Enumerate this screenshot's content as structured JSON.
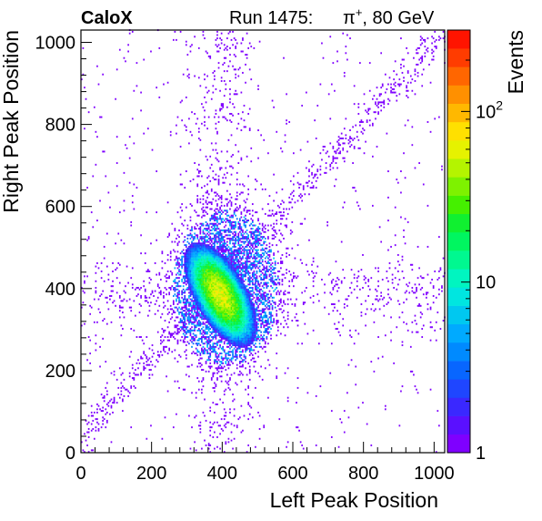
{
  "header": {
    "experiment": "CaloX",
    "run_label": "Run 1475:",
    "particle_base": "π",
    "particle_charge": "+",
    "beam_energy": ", 80 GeV"
  },
  "colors": {
    "palette": [
      "#7f00ff",
      "#5a10ff",
      "#3a28ff",
      "#1f46ff",
      "#0866ff",
      "#008aff",
      "#00aaff",
      "#00c8f0",
      "#00e6e0",
      "#00f5c0",
      "#00f890",
      "#00f660",
      "#10f030",
      "#45f000",
      "#7ef200",
      "#b4f400",
      "#e6f200",
      "#ffe000",
      "#ffb800",
      "#ff9000",
      "#ff6600",
      "#ff3c00",
      "#ff1400"
    ],
    "axis": "#000000",
    "background": "#ffffff"
  },
  "chart_data": {
    "type": "heatmap",
    "title": "",
    "xlabel": "Left Peak Position",
    "ylabel": "Right Peak Position",
    "zlabel": "Events",
    "xlim": [
      0,
      1030
    ],
    "ylim": [
      0,
      1030
    ],
    "zlim": [
      1,
      300
    ],
    "z_scale": "log",
    "bin_width": 4,
    "x_ticks": [
      0,
      200,
      400,
      600,
      800,
      1000
    ],
    "y_ticks": [
      0,
      200,
      400,
      600,
      800,
      1000
    ],
    "z_tick_labels": [
      {
        "value": 1,
        "base": "1",
        "exp": ""
      },
      {
        "value": 10,
        "base": "10",
        "exp": ""
      },
      {
        "value": 100,
        "base": "10",
        "exp": "2"
      }
    ],
    "legend": "colorbar-right",
    "grid": false,
    "features": {
      "core": {
        "center": [
          395,
          385
        ],
        "sigma_major": 55,
        "sigma_minor": 26,
        "angle_deg": -55,
        "peak_events": 60
      },
      "halo": {
        "center": [
          410,
          400
        ],
        "x_range": [
          300,
          560
        ],
        "y_range": [
          240,
          570
        ],
        "typical_events": 3
      },
      "diagonal_band": {
        "from": [
          0,
          40
        ],
        "to": [
          1000,
          1000
        ],
        "width": 18,
        "typical_events": 1
      },
      "vertical_band": {
        "x_center": 400,
        "y_range": [
          0,
          1000
        ],
        "width": 45,
        "typical_events": 1
      },
      "horizontal_band": {
        "y_center": 390,
        "x_range": [
          0,
          1000
        ],
        "width": 45,
        "typical_events": 1
      },
      "background": {
        "typical_events": 1
      }
    }
  }
}
